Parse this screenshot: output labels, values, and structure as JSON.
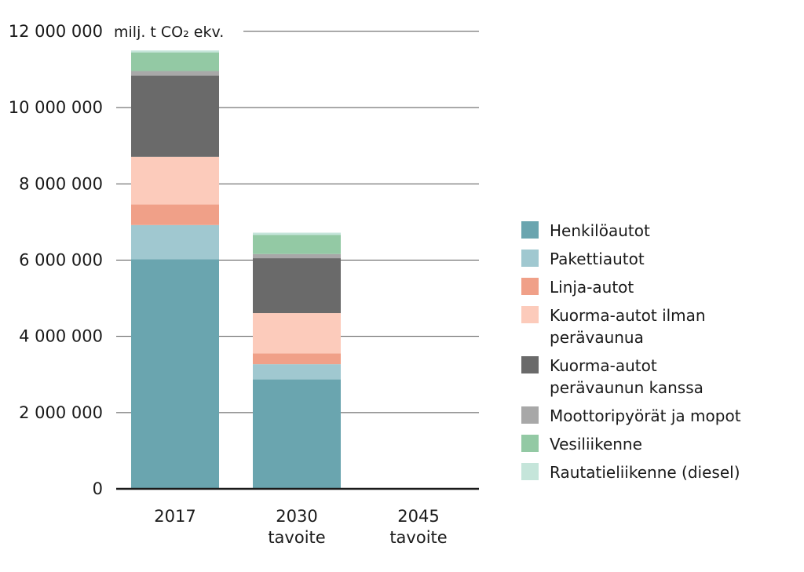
{
  "chart_data": {
    "type": "bar",
    "stacked": true,
    "unit_label": "milj. t CO₂ ekv.",
    "categories": [
      {
        "line1": "2017",
        "line2": ""
      },
      {
        "line1": "2030",
        "line2": "tavoite"
      },
      {
        "line1": "2045",
        "line2": "tavoite"
      }
    ],
    "y_ticks": [
      {
        "value": 0,
        "label": "0"
      },
      {
        "value": 2000000,
        "label": "2 000 000"
      },
      {
        "value": 4000000,
        "label": "4 000 000"
      },
      {
        "value": 6000000,
        "label": "6 000 000"
      },
      {
        "value": 8000000,
        "label": "8 000 000"
      },
      {
        "value": 10000000,
        "label": "10 000 000"
      },
      {
        "value": 12000000,
        "label": "12 000 000"
      }
    ],
    "ylim": [
      0,
      12000000
    ],
    "grid": true,
    "legend_position": "right",
    "series": [
      {
        "name": "Henkilöautot",
        "color": "#6aa5af",
        "values": [
          6020000,
          2870000,
          0
        ]
      },
      {
        "name": "Pakettiautot",
        "color": "#a0c8d0",
        "values": [
          900000,
          400000,
          0
        ]
      },
      {
        "name": "Linja-autot",
        "color": "#f0a088",
        "values": [
          540000,
          280000,
          0
        ]
      },
      {
        "name": "Kuorma-autot ilman\nperävaunua",
        "color": "#fccbbb",
        "values": [
          1250000,
          1060000,
          0
        ]
      },
      {
        "name": "Kuorma-autot\nperävaunun kanssa",
        "color": "#6a6a6a",
        "values": [
          2130000,
          1440000,
          0
        ]
      },
      {
        "name": "Moottoripyörät ja mopot",
        "color": "#a8a8a8",
        "values": [
          120000,
          110000,
          0
        ]
      },
      {
        "name": "Vesiliikenne",
        "color": "#93c9a4",
        "values": [
          490000,
          500000,
          0
        ]
      },
      {
        "name": "Rautatieliikenne (diesel)",
        "color": "#c5e5da",
        "values": [
          50000,
          60000,
          0
        ]
      }
    ]
  }
}
